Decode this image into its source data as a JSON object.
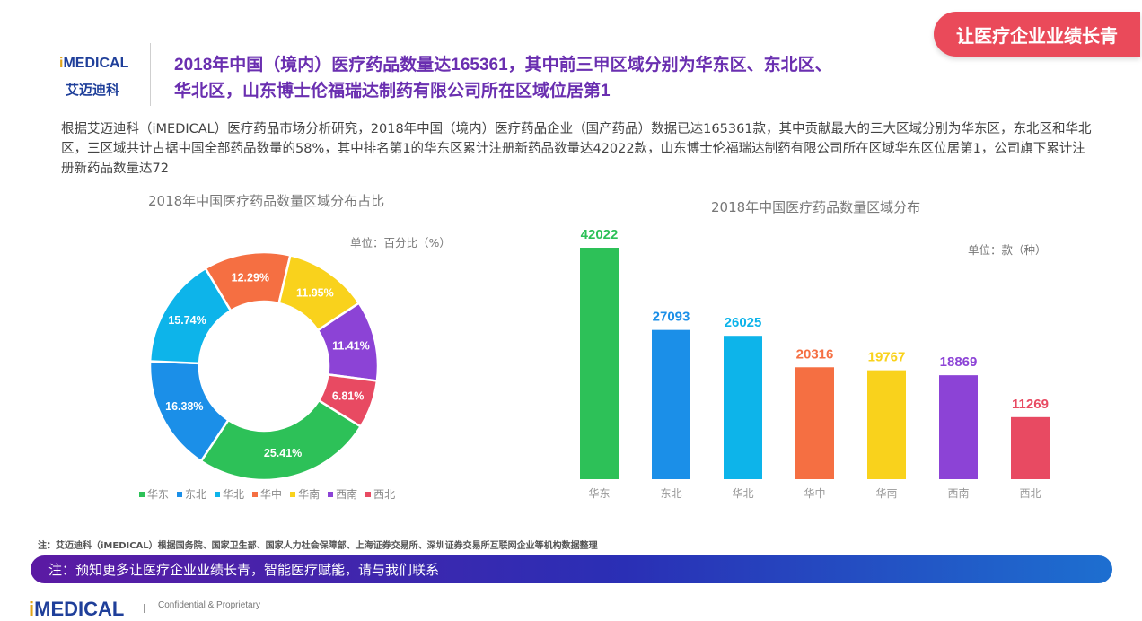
{
  "badge": "让医疗企业业绩长青",
  "logo": {
    "en_i": "i",
    "en_rest": "MEDICAL",
    "cn": "艾迈迪科"
  },
  "title_line1": "2018年中国（境内）医疗药品数量达165361，其中前三甲区域分别为华东区、东北区、",
  "title_line2": "华北区，山东博士伦福瑞达制药有限公司所在区域位居第1",
  "description": "根据艾迈迪科（iMEDICAL）医疗药品市场分析研究，2018年中国（境内）医疗药品企业（国产药品）数据已达165361款，其中贡献最大的三大区域分别为华东区，东北区和华北区，三区域共计占据中国全部药品数量的58%，其中排名第1的华东区累计注册新药品数量达42022款，山东博士伦福瑞达制药有限公司所在区域华东区位居第1，公司旗下累计注册新药品数量达72",
  "source_note": "注：艾迈迪科（iMEDICAL）根据国务院、国家卫生部、国家人力社会保障部、上海证券交易所、深圳证券交易所互联网企业等机构数据整理",
  "banner": "注：预知更多让医疗企业业绩长青，智能医疗赋能，请与我们联系",
  "footer": {
    "logo_i": "i",
    "logo_rest": "MEDICAL",
    "confidential": "Confidential & Proprietary"
  },
  "chart_data": [
    {
      "type": "pie",
      "donut": true,
      "title": "2018年中国医疗药品数量区域分布占比",
      "unit": "单位：百分比（%）",
      "legend_position": "bottom",
      "slices": [
        {
          "name": "华东",
          "value": 25.41,
          "label": "25.41%",
          "color": "#2dc158"
        },
        {
          "name": "东北",
          "value": 16.38,
          "label": "16.38%",
          "color": "#1b8fe8"
        },
        {
          "name": "华北",
          "value": 15.74,
          "label": "15.74%",
          "color": "#0db4ea"
        },
        {
          "name": "华中",
          "value": 12.29,
          "label": "12.29%",
          "color": "#f56f42"
        },
        {
          "name": "华南",
          "value": 11.95,
          "label": "11.95%",
          "color": "#f9d21c"
        },
        {
          "name": "西南",
          "value": 11.41,
          "label": "11.41%",
          "color": "#8c43d6"
        },
        {
          "name": "西北",
          "value": 6.81,
          "label": "6.81%",
          "color": "#e84a62"
        }
      ]
    },
    {
      "type": "bar",
      "title": "2018年中国医疗药品数量区域分布",
      "unit": "单位：款（种）",
      "categories": [
        "华东",
        "东北",
        "华北",
        "华中",
        "华南",
        "西南",
        "西北"
      ],
      "values": [
        42022,
        27093,
        26025,
        20316,
        19767,
        18869,
        11269
      ],
      "colors": [
        "#2dc158",
        "#1b8fe8",
        "#0db4ea",
        "#f56f42",
        "#f9d21c",
        "#8c43d6",
        "#e84a62"
      ],
      "ylim": [
        0,
        42022
      ],
      "grid": false
    }
  ]
}
